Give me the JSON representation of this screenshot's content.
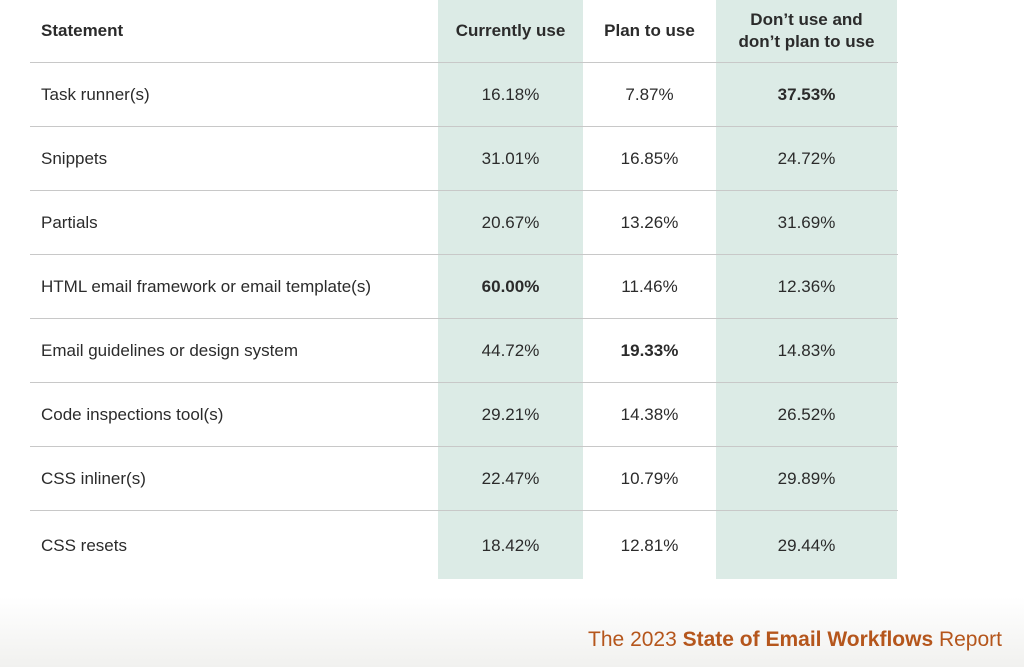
{
  "table": {
    "headers": {
      "statement": "Statement",
      "currently": "Currently use",
      "plan": "Plan to use",
      "dont_line1": "Don’t use and",
      "dont_line2": "don’t plan to use"
    },
    "rows": [
      {
        "statement": "Task runner(s)",
        "currently": "16.18%",
        "plan": "7.87%",
        "dont": "37.53%"
      },
      {
        "statement": "Snippets",
        "currently": "31.01%",
        "plan": "16.85%",
        "dont": "24.72%"
      },
      {
        "statement": "Partials",
        "currently": "20.67%",
        "plan": "13.26%",
        "dont": "31.69%"
      },
      {
        "statement": "HTML email framework or email template(s)",
        "currently": "60.00%",
        "plan": "11.46%",
        "dont": "12.36%"
      },
      {
        "statement": "Email guidelines or design system",
        "currently": "44.72%",
        "plan": "19.33%",
        "dont": "14.83%"
      },
      {
        "statement": "Code inspections tool(s)",
        "currently": "29.21%",
        "plan": "14.38%",
        "dont": "26.52%"
      },
      {
        "statement": "CSS inliner(s)",
        "currently": "22.47%",
        "plan": "10.79%",
        "dont": "29.89%"
      },
      {
        "statement": "CSS resets",
        "currently": "18.42%",
        "plan": "12.81%",
        "dont": "29.44%"
      }
    ]
  },
  "footer": {
    "prefix": "The 2023 ",
    "bold": "State of Email Workflows",
    "suffix": " Report"
  },
  "colors": {
    "highlight_column": "#dcebe6",
    "footer_accent": "#b5561c"
  }
}
